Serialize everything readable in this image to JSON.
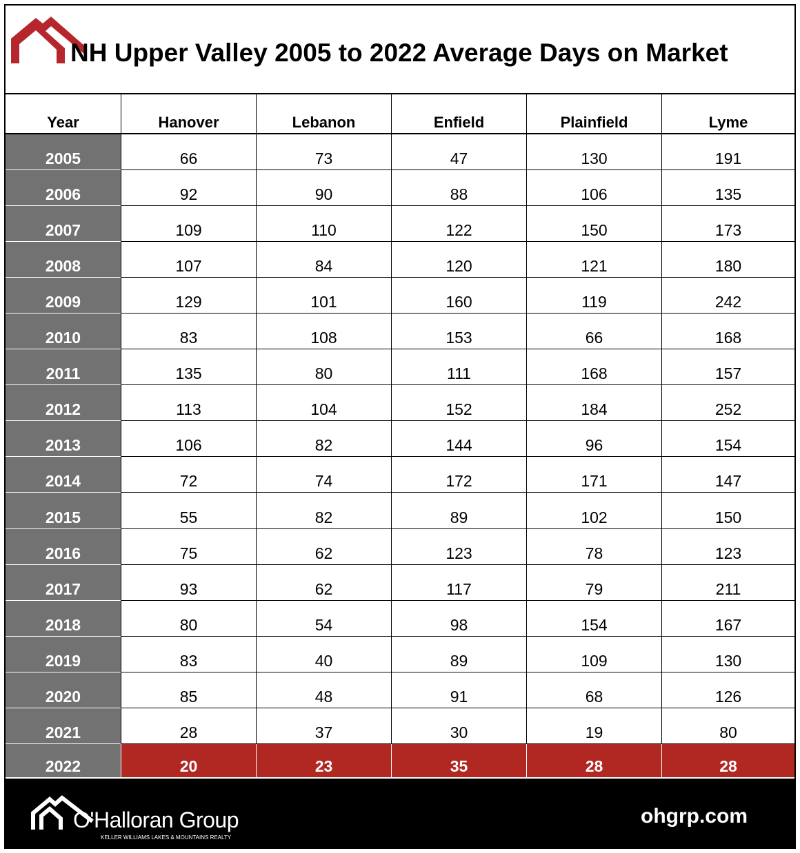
{
  "header": {
    "title": "NH Upper Valley 2005 to 2022 Average Days on Market"
  },
  "table": {
    "columns": [
      "Year",
      "Hanover",
      "Lebanon",
      "Enfield",
      "Plainfield",
      "Lyme"
    ],
    "rows": [
      [
        "2005",
        "66",
        "73",
        "47",
        "130",
        "191"
      ],
      [
        "2006",
        "92",
        "90",
        "88",
        "106",
        "135"
      ],
      [
        "2007",
        "109",
        "110",
        "122",
        "150",
        "173"
      ],
      [
        "2008",
        "107",
        "84",
        "120",
        "121",
        "180"
      ],
      [
        "2009",
        "129",
        "101",
        "160",
        "119",
        "242"
      ],
      [
        "2010",
        "83",
        "108",
        "153",
        "66",
        "168"
      ],
      [
        "2011",
        "135",
        "80",
        "111",
        "168",
        "157"
      ],
      [
        "2012",
        "113",
        "104",
        "152",
        "184",
        "252"
      ],
      [
        "2013",
        "106",
        "82",
        "144",
        "96",
        "154"
      ],
      [
        "2014",
        "72",
        "74",
        "172",
        "171",
        "147"
      ],
      [
        "2015",
        "55",
        "82",
        "89",
        "102",
        "150"
      ],
      [
        "2016",
        "75",
        "62",
        "123",
        "78",
        "123"
      ],
      [
        "2017",
        "93",
        "62",
        "117",
        "79",
        "211"
      ],
      [
        "2018",
        "80",
        "54",
        "98",
        "154",
        "167"
      ],
      [
        "2019",
        "83",
        "40",
        "89",
        "109",
        "130"
      ],
      [
        "2020",
        "85",
        "48",
        "91",
        "68",
        "126"
      ],
      [
        "2021",
        "28",
        "37",
        "30",
        "19",
        "80"
      ],
      [
        "2022",
        "20",
        "23",
        "35",
        "28",
        "28"
      ]
    ]
  },
  "footer": {
    "brand": "O'Halloran Group",
    "tagline": "KELLER WILLIAMS LAKES & MOUNTAINS REALTY",
    "url": "ohgrp.com"
  }
}
